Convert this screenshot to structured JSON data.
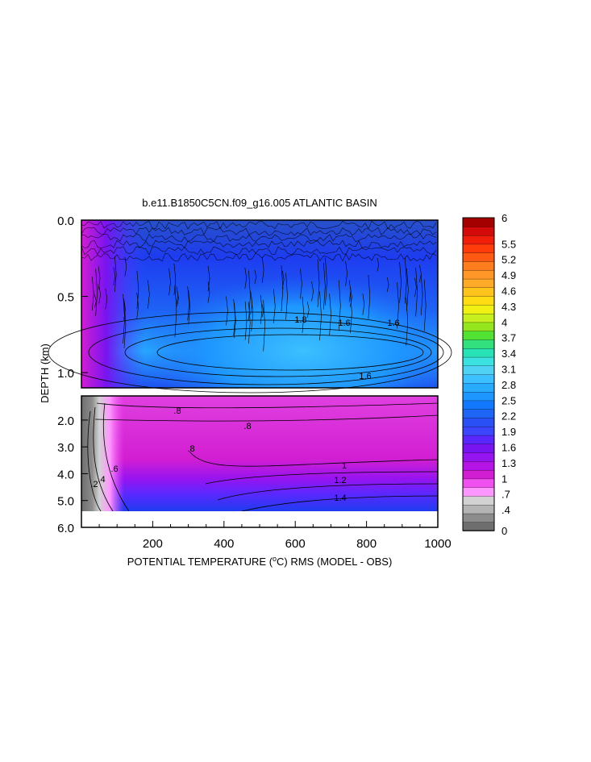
{
  "chart_data": {
    "type": "heatmap",
    "title": "b.e11.B1850C5CN.f09_g16.005 ATLANTIC BASIN",
    "xlabel": "POTENTIAL TEMPERATURE (",
    "xlabel_super": "o",
    "xlabel_tail": "C) RMS (MODEL - OBS)",
    "ylabel": "DEPTH (km)",
    "xlim": [
      0,
      1000
    ],
    "x_ticks": [
      "200",
      "400",
      "600",
      "800",
      "1000"
    ],
    "upper_panel": {
      "ylim": [
        0.0,
        1.1
      ],
      "y_ticks": [
        "0.0",
        "0.5",
        "1.0"
      ]
    },
    "lower_panel": {
      "ylim": [
        1.1,
        6.0
      ],
      "y_ticks": [
        "2.0",
        "3.0",
        "4.0",
        "5.0",
        "6.0"
      ]
    },
    "contour_labels": [
      ".2",
      ".4",
      ".6",
      ".8",
      "1",
      "1.2",
      "1.4",
      "1.6",
      "1.8"
    ],
    "colorbar": {
      "min": 0,
      "max": 6,
      "labels": [
        "6",
        "5.5",
        "5.2",
        "4.9",
        "4.6",
        "4.3",
        "4",
        "3.7",
        "3.4",
        "3.1",
        "2.8",
        "2.5",
        "2.2",
        "1.9",
        "1.6",
        "1.3",
        "1",
        ".7",
        ".4",
        "0"
      ],
      "colors": [
        "#6e6e6e",
        "#8c8c8c",
        "#b4b4b4",
        "#d2d2d2",
        "#ff96ff",
        "#f050f0",
        "#d21ed2",
        "#b414e6",
        "#9614f0",
        "#7814f0",
        "#5a28ff",
        "#3c46ff",
        "#2850f5",
        "#1e64f5",
        "#1478ff",
        "#1e96ff",
        "#28aaff",
        "#3cc0ff",
        "#50d2f5",
        "#3ce1e1",
        "#28e1b4",
        "#32e17d",
        "#50e132",
        "#96e61e",
        "#c8f01e",
        "#f0f014",
        "#ffdc14",
        "#ffc31e",
        "#ffaa28",
        "#ff9628",
        "#ff7d1e",
        "#ff5a14",
        "#ff3c0a",
        "#f01e0a",
        "#d20a0a",
        "#a50000"
      ]
    }
  }
}
